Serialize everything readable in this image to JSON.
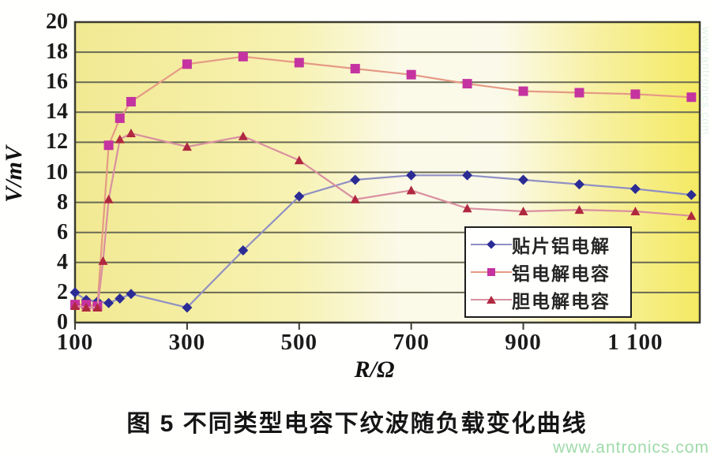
{
  "caption": "图 5  不同类型电容下纹波随负载变化曲线",
  "watermark": "www.antronics.com",
  "side_watermark": "www.antronics.com",
  "chart_data": {
    "type": "line",
    "title": "图 5 不同类型电容下纹波随负载变化曲线",
    "xlabel": "R/Ω",
    "ylabel": "V/mV",
    "xlim": [
      100,
      1215
    ],
    "ylim": [
      0,
      20
    ],
    "grid": true,
    "legend_position": "inside lower right",
    "x_ticks": [
      100,
      300,
      500,
      700,
      900,
      1100
    ],
    "x_tick_labels": [
      "100",
      "300",
      "500",
      "700",
      "900",
      "1 100"
    ],
    "y_ticks": [
      20,
      18,
      16,
      14,
      12,
      10,
      8,
      6,
      4,
      2,
      0
    ],
    "colors": {
      "gridline": "#6a6a55",
      "border": "#3b3b30",
      "plot_bg_left": "#f1e992",
      "plot_bg_mid": "#fbf9e8",
      "plot_bg_right": "#f4ea62"
    },
    "series": [
      {
        "name": "贴片铝电解",
        "marker": "diamond",
        "marker_color": "#2b2b96",
        "line_color": "#8f8fc4",
        "points": [
          [
            100,
            2.0
          ],
          [
            120,
            1.5
          ],
          [
            140,
            1.4
          ],
          [
            160,
            1.3
          ],
          [
            180,
            1.6
          ],
          [
            200,
            1.9
          ],
          [
            300,
            1.0
          ],
          [
            400,
            4.8
          ],
          [
            500,
            8.4
          ],
          [
            600,
            9.5
          ],
          [
            700,
            9.8
          ],
          [
            800,
            9.8
          ],
          [
            900,
            9.5
          ],
          [
            1000,
            9.2
          ],
          [
            1100,
            8.9
          ],
          [
            1200,
            8.5
          ]
        ]
      },
      {
        "name": "铝电解电容",
        "marker": "square",
        "marker_color": "#c433a0",
        "line_color": "#e59a85",
        "points": [
          [
            100,
            1.2
          ],
          [
            120,
            1.2
          ],
          [
            140,
            1.1
          ],
          [
            160,
            11.8
          ],
          [
            180,
            13.6
          ],
          [
            200,
            14.7
          ],
          [
            300,
            17.2
          ],
          [
            400,
            17.7
          ],
          [
            500,
            17.3
          ],
          [
            600,
            16.9
          ],
          [
            700,
            16.5
          ],
          [
            800,
            15.9
          ],
          [
            900,
            15.4
          ],
          [
            1000,
            15.3
          ],
          [
            1100,
            15.2
          ],
          [
            1200,
            15.0
          ]
        ]
      },
      {
        "name": "胆电解电容",
        "marker": "triangle",
        "marker_color": "#b02840",
        "line_color": "#d98fa0",
        "points": [
          [
            100,
            1.1
          ],
          [
            120,
            1.0
          ],
          [
            140,
            1.0
          ],
          [
            150,
            4.1
          ],
          [
            160,
            8.2
          ],
          [
            180,
            12.2
          ],
          [
            200,
            12.6
          ],
          [
            300,
            11.7
          ],
          [
            400,
            12.4
          ],
          [
            500,
            10.8
          ],
          [
            600,
            8.2
          ],
          [
            700,
            8.8
          ],
          [
            800,
            7.6
          ],
          [
            900,
            7.4
          ],
          [
            1000,
            7.5
          ],
          [
            1100,
            7.4
          ],
          [
            1200,
            7.1
          ]
        ]
      }
    ]
  }
}
